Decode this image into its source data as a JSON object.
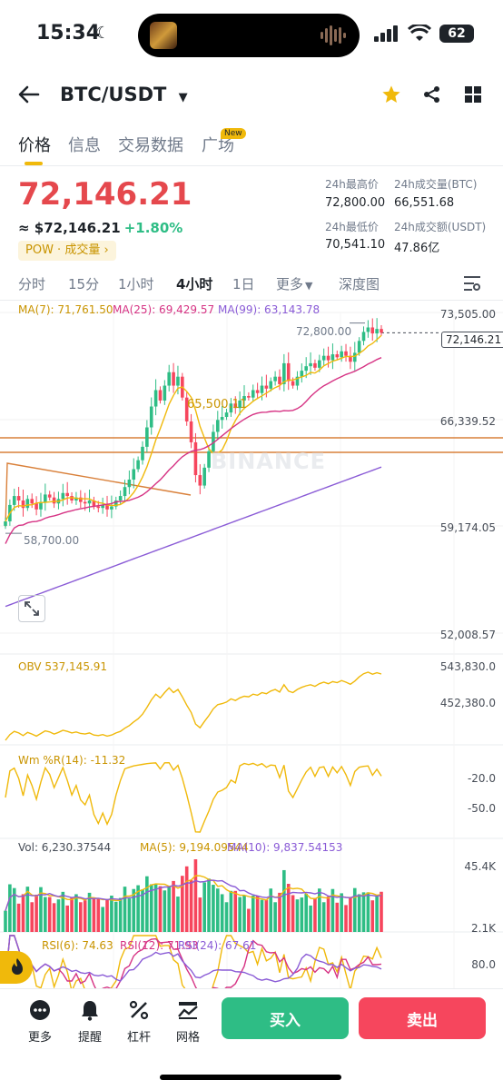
{
  "status_bar": {
    "time": "15:34",
    "battery": "62"
  },
  "header": {
    "pair": "BTC/USDT"
  },
  "tabs": [
    "价格",
    "信息",
    "交易数据",
    "广场"
  ],
  "tab_badge": "New",
  "price": {
    "last": "72,146.21",
    "usd": "≈ $72,146.21",
    "change": "+1.80%",
    "tag": "POW · 成交量 ›"
  },
  "stats": {
    "high_label": "24h最高价",
    "high": "72,800.00",
    "low_label": "24h最低价",
    "low": "70,541.10",
    "vol_btc_label": "24h成交量(BTC)",
    "vol_btc": "66,551.68",
    "vol_usdt_label": "24h成交额(USDT)",
    "vol_usdt": "47.86亿"
  },
  "timeframes": [
    "分时",
    "15分",
    "1小时",
    "4小时",
    "1日",
    "更多",
    "深度图"
  ],
  "active_timeframe": "4小时",
  "colors": {
    "up": "#2ebd85",
    "down": "#f6465d",
    "accent": "#f0b90b",
    "ma7": "#f0b90b",
    "ma25": "#d63384",
    "ma99": "#8a5bd6"
  },
  "chart_data": {
    "type": "candlestick",
    "ma_legend": {
      "ma7": "MA(7): 71,761.50",
      "ma25": "MA(25): 69,429.57",
      "ma99": "MA(99): 63,143.78"
    },
    "price_axis": [
      "73,505.00",
      "66,339.52",
      "59,174.05",
      "52,008.57"
    ],
    "ylim": [
      52008.57,
      73505.0
    ],
    "current_price_label": "72,146.21",
    "high_marker": "72,800.00",
    "low_marker": "58,700.00",
    "overlay_label": "65,500.11",
    "watermark": "BINANCE",
    "obv": {
      "legend": "OBV 537,145.91",
      "axis": [
        "543,830.0",
        "452,380.0"
      ]
    },
    "wr": {
      "legend": "Wm %R(14): -11.32",
      "axis": [
        "-20.0",
        "-50.0"
      ]
    },
    "volume": {
      "legend_vol": "Vol: 6,230.37544",
      "legend_ma5": "MA(5): 9,194.09544",
      "legend_ma10": "MA(10): 9,837.54153",
      "axis": [
        "45.4K",
        "2.1K"
      ]
    },
    "rsi": {
      "legend_6": "RSI(6): 74.63",
      "legend_12": "RSI(12): 71.93",
      "legend_24": "RSI(24): 67.61",
      "axis": [
        "80.0"
      ]
    },
    "closes": [
      59500,
      60600,
      61200,
      60900,
      60400,
      61000,
      60700,
      60300,
      60800,
      61300,
      61100,
      60700,
      61000,
      61400,
      61200,
      60900,
      61100,
      60800,
      60700,
      60900,
      60500,
      60400,
      60600,
      60300,
      60500,
      60900,
      61200,
      61800,
      62300,
      63000,
      63600,
      64500,
      65800,
      67200,
      68300,
      67600,
      68600,
      69500,
      68600,
      69200,
      67800,
      66200,
      64800,
      62600,
      61900,
      63100,
      64200,
      65500,
      66300,
      66500,
      66800,
      67400,
      67100,
      67600,
      67900,
      67800,
      68300,
      68100,
      68600,
      68400,
      68900,
      69200,
      68700,
      70100,
      68900,
      68600,
      69200,
      69600,
      69900,
      70100,
      69800,
      70300,
      70600,
      70300,
      70700,
      70500,
      70900,
      70600,
      70200,
      70800,
      71600,
      72200,
      72500,
      72100,
      72400,
      72146
    ]
  },
  "bottom_tools": [
    "更多",
    "提醒",
    "杠杆",
    "网格"
  ],
  "buy_label": "买入",
  "sell_label": "卖出"
}
